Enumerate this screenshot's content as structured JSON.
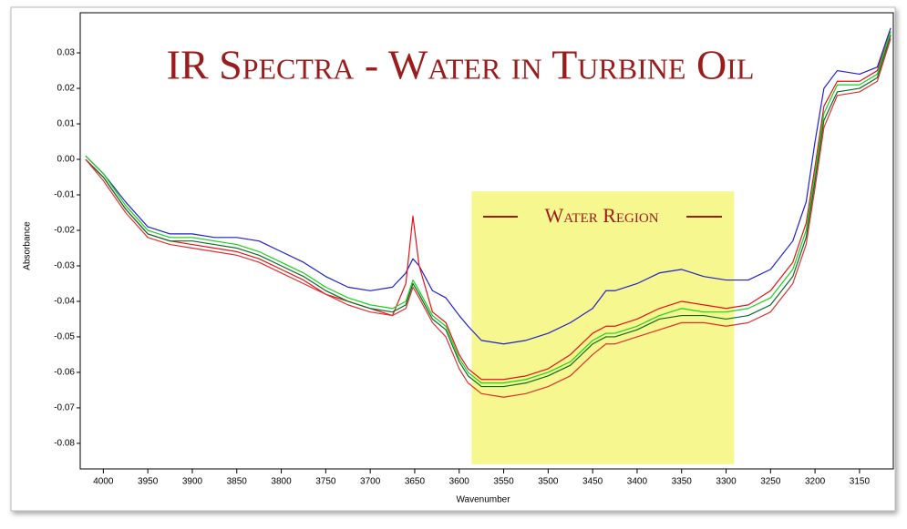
{
  "chart_data": {
    "type": "line",
    "title": "IR Spectra - Water in Turbine Oil",
    "xlabel": "Wavenumber",
    "ylabel": "Absorbance",
    "annotation": "Water Region",
    "region": {
      "x": [
        3586,
        3291
      ],
      "y": [
        -0.009,
        -0.0859
      ],
      "color": "#f7f78f"
    },
    "xlim": [
      4026,
      3112
    ],
    "ylim": [
      -0.0872,
      0.0413
    ],
    "xticks": [
      4000,
      3950,
      3900,
      3850,
      3800,
      3750,
      3700,
      3650,
      3600,
      3550,
      3500,
      3450,
      3400,
      3350,
      3300,
      3250,
      3200,
      3150
    ],
    "yticks": [
      0.03,
      0.02,
      0.01,
      {
        "value": 0,
        "label": "0.00"
      },
      -0.01,
      -0.02,
      -0.03,
      -0.04,
      -0.05,
      -0.06,
      -0.07,
      -0.08
    ],
    "x": [
      4020,
      4000,
      3975,
      3950,
      3925,
      3900,
      3875,
      3850,
      3825,
      3800,
      3775,
      3750,
      3725,
      3700,
      3675,
      3660,
      3652,
      3645,
      3630,
      3615,
      3600,
      3590,
      3575,
      3550,
      3525,
      3500,
      3475,
      3450,
      3435,
      3425,
      3400,
      3375,
      3350,
      3325,
      3300,
      3275,
      3250,
      3225,
      3210,
      3200,
      3190,
      3175,
      3150,
      3130,
      3115
    ],
    "series": [
      {
        "color": "#1f1fd0",
        "values": [
          0.001,
          -0.004,
          -0.012,
          -0.019,
          -0.021,
          -0.021,
          -0.022,
          -0.022,
          -0.023,
          -0.026,
          -0.029,
          -0.033,
          -0.036,
          -0.037,
          -0.036,
          -0.032,
          -0.028,
          -0.03,
          -0.037,
          -0.039,
          -0.044,
          -0.047,
          -0.051,
          -0.052,
          -0.051,
          -0.049,
          -0.046,
          -0.042,
          -0.037,
          -0.037,
          -0.035,
          -0.032,
          -0.031,
          -0.033,
          -0.034,
          -0.034,
          -0.031,
          -0.023,
          -0.012,
          0.005,
          0.02,
          0.025,
          0.024,
          0.026,
          0.037
        ]
      },
      {
        "color": "#e8101a",
        "values": [
          0.0,
          -0.005,
          -0.014,
          -0.021,
          -0.023,
          -0.024,
          -0.025,
          -0.026,
          -0.028,
          -0.031,
          -0.034,
          -0.038,
          -0.04,
          -0.042,
          -0.044,
          -0.035,
          -0.016,
          -0.03,
          -0.043,
          -0.046,
          -0.055,
          -0.059,
          -0.062,
          -0.062,
          -0.061,
          -0.059,
          -0.055,
          -0.049,
          -0.047,
          -0.047,
          -0.045,
          -0.042,
          -0.04,
          -0.041,
          -0.042,
          -0.041,
          -0.037,
          -0.029,
          -0.018,
          -0.002,
          0.015,
          0.022,
          0.022,
          0.025,
          0.036
        ]
      },
      {
        "color": "#19d219",
        "values": [
          0.001,
          -0.004,
          -0.013,
          -0.02,
          -0.022,
          -0.022,
          -0.023,
          -0.024,
          -0.026,
          -0.029,
          -0.032,
          -0.036,
          -0.039,
          -0.041,
          -0.042,
          -0.04,
          -0.034,
          -0.037,
          -0.044,
          -0.047,
          -0.056,
          -0.06,
          -0.063,
          -0.063,
          -0.062,
          -0.06,
          -0.057,
          -0.051,
          -0.049,
          -0.049,
          -0.047,
          -0.044,
          -0.042,
          -0.043,
          -0.043,
          -0.042,
          -0.039,
          -0.031,
          -0.02,
          -0.004,
          0.013,
          0.021,
          0.021,
          0.024,
          0.036
        ]
      },
      {
        "color": "#0a6b2a",
        "values": [
          0.0,
          -0.005,
          -0.014,
          -0.021,
          -0.023,
          -0.023,
          -0.024,
          -0.025,
          -0.027,
          -0.03,
          -0.033,
          -0.037,
          -0.04,
          -0.042,
          -0.043,
          -0.041,
          -0.035,
          -0.038,
          -0.045,
          -0.048,
          -0.057,
          -0.061,
          -0.064,
          -0.064,
          -0.063,
          -0.061,
          -0.058,
          -0.052,
          -0.05,
          -0.05,
          -0.048,
          -0.045,
          -0.044,
          -0.044,
          -0.045,
          -0.044,
          -0.041,
          -0.033,
          -0.022,
          -0.006,
          0.011,
          0.019,
          0.02,
          0.023,
          0.035
        ]
      },
      {
        "color": "#e03030",
        "values": [
          0.0,
          -0.006,
          -0.015,
          -0.022,
          -0.024,
          -0.025,
          -0.026,
          -0.027,
          -0.029,
          -0.032,
          -0.035,
          -0.038,
          -0.041,
          -0.043,
          -0.044,
          -0.042,
          -0.036,
          -0.039,
          -0.046,
          -0.05,
          -0.059,
          -0.063,
          -0.066,
          -0.067,
          -0.066,
          -0.064,
          -0.061,
          -0.055,
          -0.052,
          -0.052,
          -0.05,
          -0.048,
          -0.046,
          -0.046,
          -0.047,
          -0.046,
          -0.043,
          -0.035,
          -0.024,
          -0.008,
          0.009,
          0.018,
          0.019,
          0.022,
          0.034
        ]
      }
    ]
  }
}
